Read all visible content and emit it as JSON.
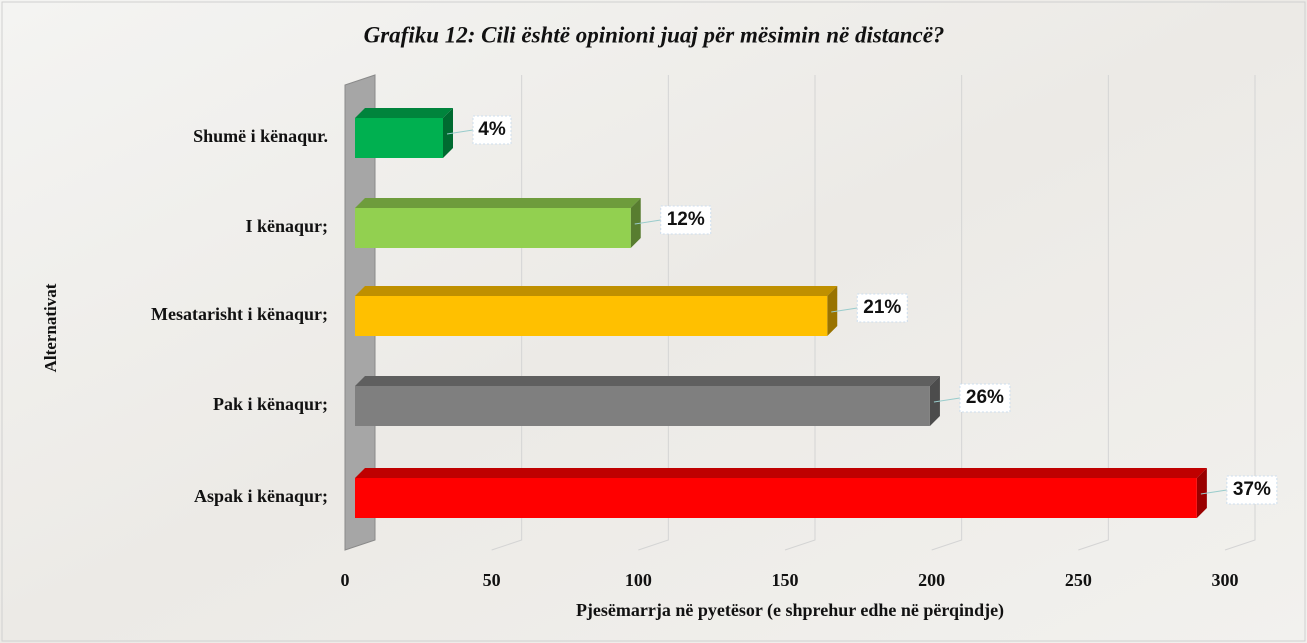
{
  "chart_data": {
    "type": "bar3d",
    "orientation": "horizontal",
    "title": "Grafiku 12: Cili është opinioni juaj për mësimin në distancë?",
    "x_label": "Pjesëmarrja në pyetësor (e shprehur edhe në përqindje)",
    "y_label": "Alternativat",
    "categories": [
      "Shumë i kënaqur.",
      "I kënaqur;",
      "Mesatarisht i kënaqur;",
      "Pak i kënaqur;",
      "Aspak i kënaqur;"
    ],
    "values": [
      30,
      94,
      161,
      196,
      287
    ],
    "value_labels": [
      "4%",
      "12%",
      "21%",
      "26%",
      "37%"
    ],
    "colors": [
      "#00b050",
      "#92d050",
      "#ffc000",
      "#7f7f7f",
      "#ff0000"
    ],
    "xlim": [
      0,
      300
    ],
    "xticks": [
      0,
      50,
      100,
      150,
      200,
      250,
      300
    ],
    "grid": true
  }
}
